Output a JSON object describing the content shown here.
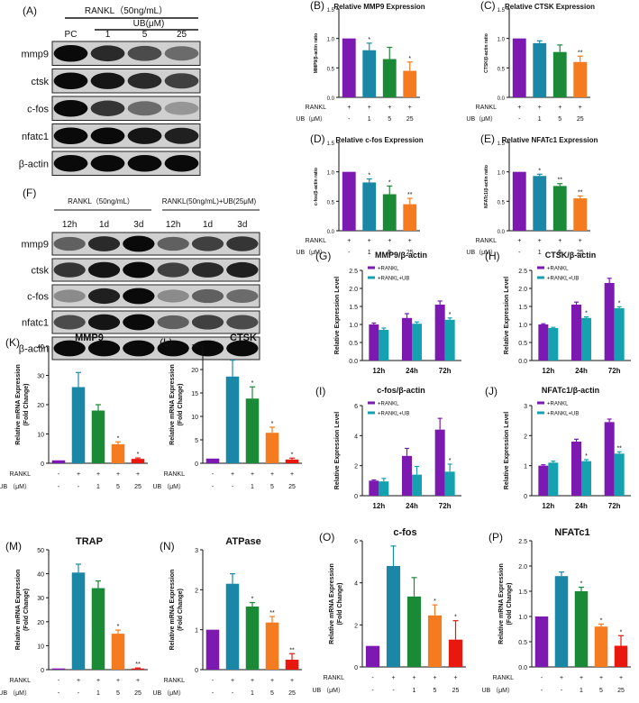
{
  "colors": {
    "purple": "#7b19b0",
    "blue": "#1a87a6",
    "green": "#1a8a37",
    "orange": "#f47b20",
    "red": "#e8180f",
    "teal": "#14a1b0"
  },
  "blot_a": {
    "letter": "(A)",
    "rankl_label": "RANKL（50ng/mL）",
    "ub_label": "UB(μM)",
    "lanes": [
      "PC",
      "1",
      "5",
      "25"
    ],
    "proteins": [
      "mmp9",
      "ctsk",
      "c-fos",
      "nfatc1",
      "β-actin"
    ],
    "intensities": [
      [
        1.0,
        0.85,
        0.7,
        0.55
      ],
      [
        1.0,
        0.95,
        0.85,
        0.75
      ],
      [
        1.0,
        0.8,
        0.55,
        0.35
      ],
      [
        1.0,
        1.0,
        0.95,
        0.9
      ],
      [
        1.0,
        1.0,
        1.0,
        1.0
      ]
    ]
  },
  "blot_f": {
    "letter": "(F)",
    "group1": "RANKL（50ng/mL）",
    "group2": "RANKL(50ng/mL)+UB(25μM)",
    "lanes": [
      "12h",
      "1d",
      "3d",
      "12h",
      "1d",
      "3d"
    ],
    "proteins": [
      "mmp9",
      "ctsk",
      "c-fos",
      "nfatc1",
      "β-actin"
    ],
    "intensities": [
      [
        0.6,
        0.85,
        1.0,
        0.6,
        0.75,
        0.8
      ],
      [
        0.8,
        0.95,
        1.0,
        0.75,
        0.85,
        0.9
      ],
      [
        0.4,
        0.9,
        1.0,
        0.4,
        0.6,
        0.55
      ],
      [
        0.7,
        0.95,
        1.0,
        0.6,
        0.75,
        0.7
      ],
      [
        1.0,
        1.0,
        1.0,
        1.0,
        1.0,
        1.0
      ]
    ]
  },
  "chart_data": [
    {
      "id": "B",
      "letter": "(B)",
      "type": "bar",
      "title": "Relative MMP9 Expression",
      "ylabel": "MMP9/β-actin ratio",
      "ylim": [
        0,
        1.5
      ],
      "yticks": [
        0.0,
        0.5,
        1.0,
        1.5
      ],
      "tick_labels": [
        "0.0",
        "0.5",
        "1.0",
        "1.5"
      ],
      "values": [
        1.0,
        0.8,
        0.65,
        0.45
      ],
      "errors": [
        0,
        0.12,
        0.2,
        0.15
      ],
      "sig": [
        "",
        "*",
        "",
        "*"
      ],
      "colors": [
        "purple",
        "blue",
        "green",
        "orange"
      ],
      "table": {
        "rows": [
          {
            "label": "RANKL",
            "cells": [
              "+",
              "+",
              "+",
              "+"
            ]
          },
          {
            "label": "UB（μM）",
            "cells": [
              "-",
              "1",
              "5",
              "25"
            ]
          }
        ]
      }
    },
    {
      "id": "C",
      "letter": "(C)",
      "type": "bar",
      "title": "Relative CTSK  Expression",
      "ylabel": "CTSK/β-actin ratio",
      "ylim": [
        0,
        1.5
      ],
      "yticks": [
        0.0,
        0.5,
        1.0,
        1.5
      ],
      "tick_labels": [
        "0.0",
        "0.5",
        "1.0",
        "1.5"
      ],
      "values": [
        1.0,
        0.92,
        0.77,
        0.6
      ],
      "errors": [
        0,
        0.04,
        0.12,
        0.1
      ],
      "sig": [
        "",
        "",
        "",
        "**"
      ],
      "colors": [
        "purple",
        "blue",
        "green",
        "orange"
      ],
      "table": {
        "rows": [
          {
            "label": "RANKL",
            "cells": [
              "+",
              "+",
              "+",
              "+"
            ]
          },
          {
            "label": "UB（μM）",
            "cells": [
              "-",
              "1",
              "5",
              "25"
            ]
          }
        ]
      }
    },
    {
      "id": "D",
      "letter": "(D)",
      "type": "bar",
      "title": "Relative c-fos Expression",
      "ylabel": "c-fos/β-actin ratio",
      "ylim": [
        0,
        1.5
      ],
      "yticks": [
        0.0,
        0.5,
        1.0,
        1.5
      ],
      "tick_labels": [
        "0.0",
        "0.5",
        "1.0",
        "1.5"
      ],
      "values": [
        1.0,
        0.82,
        0.62,
        0.45
      ],
      "errors": [
        0,
        0.06,
        0.14,
        0.1
      ],
      "sig": [
        "",
        "*",
        "*",
        "**"
      ],
      "colors": [
        "purple",
        "blue",
        "green",
        "orange"
      ],
      "table": {
        "rows": [
          {
            "label": "RANKL",
            "cells": [
              "+",
              "+",
              "+",
              "+"
            ]
          },
          {
            "label": "UB（μM）",
            "cells": [
              "-",
              "1",
              "5",
              "25"
            ]
          }
        ]
      }
    },
    {
      "id": "E",
      "letter": "(E)",
      "type": "bar",
      "title": "Relative NFATc1 Expression",
      "ylabel": "NFATc1/β-actin ratio",
      "ylim": [
        0,
        1.5
      ],
      "yticks": [
        0.0,
        0.5,
        1.0,
        1.5
      ],
      "tick_labels": [
        "0.0",
        "0.5",
        "1.0",
        "1.5"
      ],
      "values": [
        1.0,
        0.93,
        0.76,
        0.55
      ],
      "errors": [
        0,
        0.03,
        0.04,
        0.04
      ],
      "sig": [
        "",
        "*",
        "**",
        "**"
      ],
      "colors": [
        "purple",
        "blue",
        "green",
        "orange"
      ],
      "table": {
        "rows": [
          {
            "label": "RANKL",
            "cells": [
              "+",
              "+",
              "+",
              "+"
            ]
          },
          {
            "label": "UB（μM）",
            "cells": [
              "-",
              "1",
              "5",
              "25"
            ]
          }
        ]
      }
    },
    {
      "id": "G",
      "letter": "(G)",
      "type": "grouped_bar",
      "title": "MMP9/β-actin",
      "ylabel": "Relative Expression Level",
      "ylim": [
        0,
        2.5
      ],
      "yticks": [
        0.0,
        0.5,
        1.0,
        1.5,
        2.0,
        2.5
      ],
      "tick_labels": [
        "0.0",
        "0.5",
        "1.0",
        "1.5",
        "2.0",
        "2.5"
      ],
      "categories": [
        "12h",
        "24h",
        "72h"
      ],
      "series": [
        {
          "name": "+RANKL",
          "color": "purple",
          "values": [
            1.0,
            1.18,
            1.55
          ],
          "errors": [
            0.04,
            0.12,
            0.1
          ]
        },
        {
          "name": "+RANKL+UB",
          "color": "teal",
          "values": [
            0.85,
            1.02,
            1.13
          ],
          "errors": [
            0.05,
            0.05,
            0.05
          ]
        }
      ],
      "sig": [
        [
          "",
          ""
        ],
        [
          "",
          ""
        ],
        [
          "",
          "*"
        ]
      ]
    },
    {
      "id": "H",
      "letter": "(H)",
      "type": "grouped_bar",
      "title": "CTSK/β-actin",
      "ylabel": "Relative Expression Level",
      "ylim": [
        0,
        2.5
      ],
      "yticks": [
        0.0,
        0.5,
        1.0,
        1.5,
        2.0,
        2.5
      ],
      "tick_labels": [
        "0.0",
        "0.5",
        "1.0",
        "1.5",
        "2.0",
        "2.5"
      ],
      "categories": [
        "12h",
        "24h",
        "72h"
      ],
      "series": [
        {
          "name": "+RANKL",
          "color": "purple",
          "values": [
            1.0,
            1.55,
            2.15
          ],
          "errors": [
            0.02,
            0.07,
            0.13
          ]
        },
        {
          "name": "+RANKL+UB",
          "color": "teal",
          "values": [
            0.9,
            1.18,
            1.45
          ],
          "errors": [
            0.02,
            0.03,
            0.04
          ]
        }
      ],
      "sig": [
        [
          "",
          ""
        ],
        [
          "",
          "*"
        ],
        [
          "",
          "*"
        ]
      ]
    },
    {
      "id": "I",
      "letter": "(I)",
      "type": "grouped_bar",
      "title": "c-fos/β-actin",
      "ylabel": "Relative Expression Level",
      "ylim": [
        0,
        6
      ],
      "yticks": [
        0,
        2,
        4,
        6
      ],
      "tick_labels": [
        "0",
        "2",
        "4",
        "6"
      ],
      "categories": [
        "12h",
        "24h",
        "72h"
      ],
      "series": [
        {
          "name": "+RANKL",
          "color": "purple",
          "values": [
            1.0,
            2.65,
            4.4
          ],
          "errors": [
            0.05,
            0.5,
            0.75
          ]
        },
        {
          "name": "+RANKL+UB",
          "color": "teal",
          "values": [
            0.95,
            1.4,
            1.6
          ],
          "errors": [
            0.2,
            0.55,
            0.5
          ]
        }
      ],
      "sig": [
        [
          "",
          ""
        ],
        [
          "",
          ""
        ],
        [
          "",
          "*"
        ]
      ]
    },
    {
      "id": "J",
      "letter": "(J)",
      "type": "grouped_bar",
      "title": "NFATc1/β-actin",
      "ylabel": "Relative Expression Level",
      "ylim": [
        0,
        3
      ],
      "yticks": [
        0,
        1,
        2,
        3
      ],
      "tick_labels": [
        "0",
        "1",
        "2",
        "3"
      ],
      "categories": [
        "12h",
        "24h",
        "72h"
      ],
      "series": [
        {
          "name": "+RANKL",
          "color": "purple",
          "values": [
            1.0,
            1.8,
            2.45
          ],
          "errors": [
            0.03,
            0.08,
            0.1
          ]
        },
        {
          "name": "+RANKL+UB",
          "color": "teal",
          "values": [
            1.1,
            1.15,
            1.4
          ],
          "errors": [
            0.05,
            0.05,
            0.06
          ]
        }
      ],
      "sig": [
        [
          "",
          ""
        ],
        [
          "",
          "*"
        ],
        [
          "",
          "**"
        ]
      ]
    },
    {
      "id": "K",
      "letter": "(K)",
      "type": "bar",
      "title": "MMP9",
      "ylabel": "Relative mRNA Expression\n(Fold Change)",
      "ylim": [
        0,
        40
      ],
      "yticks": [
        0,
        10,
        20,
        30,
        40
      ],
      "tick_labels": [
        "0",
        "10",
        "20",
        "30",
        "40"
      ],
      "values": [
        1.0,
        26.0,
        18.0,
        6.5,
        1.5
      ],
      "errors": [
        0,
        5.0,
        2.0,
        0.8,
        0.3
      ],
      "sig": [
        "",
        "",
        "",
        "*",
        "*"
      ],
      "colors": [
        "purple",
        "blue",
        "green",
        "orange",
        "red"
      ],
      "table": {
        "rows": [
          {
            "label": "RANKL",
            "cells": [
              "-",
              "+",
              "+",
              "+",
              "+"
            ]
          },
          {
            "label": "UB （μM）",
            "cells": [
              "-",
              "-",
              "1",
              "5",
              "25"
            ]
          }
        ]
      }
    },
    {
      "id": "L",
      "letter": "(L)",
      "type": "bar",
      "title": "CTSK",
      "ylabel": "Relative mRNA Expression\n(Fold Change)",
      "ylim": [
        0,
        25
      ],
      "yticks": [
        0,
        5,
        10,
        15,
        20,
        25
      ],
      "tick_labels": [
        "0",
        "5",
        "10",
        "15",
        "20",
        "25"
      ],
      "values": [
        1.0,
        18.5,
        13.8,
        6.5,
        0.8
      ],
      "errors": [
        0,
        3.5,
        2.5,
        1.2,
        0.3
      ],
      "sig": [
        "",
        "",
        "*",
        "*",
        "*"
      ],
      "colors": [
        "purple",
        "blue",
        "green",
        "orange",
        "red"
      ],
      "table": {
        "rows": [
          {
            "label": "RANKL",
            "cells": [
              "-",
              "+",
              "+",
              "+",
              "+"
            ]
          },
          {
            "label": "UB （μM）",
            "cells": [
              "-",
              "-",
              "1",
              "5",
              "25"
            ]
          }
        ]
      }
    },
    {
      "id": "M",
      "letter": "(M)",
      "type": "bar",
      "title": "TRAP",
      "ylabel": "Relative mRNA Expression\n(Fold Change)",
      "ylim": [
        0,
        50
      ],
      "yticks": [
        0,
        10,
        20,
        30,
        40,
        50
      ],
      "tick_labels": [
        "0",
        "10",
        "20",
        "30",
        "40",
        "50"
      ],
      "values": [
        0.5,
        40.5,
        34.0,
        15.0,
        0.5
      ],
      "errors": [
        0,
        3.5,
        3.0,
        1.5,
        0.2
      ],
      "sig": [
        "",
        "",
        "",
        "*",
        "**"
      ],
      "colors": [
        "purple",
        "blue",
        "green",
        "orange",
        "red"
      ],
      "table": {
        "rows": [
          {
            "label": "RANKL",
            "cells": [
              "-",
              "+",
              "+",
              "+",
              "+"
            ]
          },
          {
            "label": "UB （μM）",
            "cells": [
              "-",
              "-",
              "1",
              "5",
              "25"
            ]
          }
        ]
      }
    },
    {
      "id": "N",
      "letter": "(N)",
      "type": "bar",
      "title": "ATPase",
      "ylabel": "Relative mRNA Expression\n(Fold Change)",
      "ylim": [
        0,
        3
      ],
      "yticks": [
        0,
        1,
        2,
        3
      ],
      "tick_labels": [
        "0",
        "1",
        "2",
        "3"
      ],
      "values": [
        1.0,
        2.15,
        1.58,
        1.18,
        0.25
      ],
      "errors": [
        0,
        0.25,
        0.1,
        0.15,
        0.15
      ],
      "sig": [
        "",
        "",
        "*",
        "**",
        "**"
      ],
      "colors": [
        "purple",
        "blue",
        "green",
        "orange",
        "red"
      ],
      "table": {
        "rows": [
          {
            "label": "RANKL",
            "cells": [
              "-",
              "+",
              "+",
              "+",
              "+"
            ]
          },
          {
            "label": "UB （μM）",
            "cells": [
              "-",
              "-",
              "1",
              "5",
              "25"
            ]
          }
        ]
      }
    },
    {
      "id": "O",
      "letter": "(O)",
      "type": "bar",
      "title": "c-fos",
      "ylabel": "Relative mRNA Expression\n(Fold Change)",
      "ylim": [
        0,
        6
      ],
      "yticks": [
        0,
        2,
        4,
        6
      ],
      "tick_labels": [
        "0",
        "2",
        "4",
        "6"
      ],
      "values": [
        1.0,
        4.8,
        3.35,
        2.45,
        1.3
      ],
      "errors": [
        0,
        0.95,
        0.9,
        0.5,
        0.9
      ],
      "sig": [
        "",
        "",
        "",
        "*",
        "*"
      ],
      "colors": [
        "purple",
        "blue",
        "green",
        "orange",
        "red"
      ],
      "table": {
        "rows": [
          {
            "label": "RANKL",
            "cells": [
              "-",
              "+",
              "+",
              "+",
              "+"
            ]
          },
          {
            "label": "UB （μM）",
            "cells": [
              "-",
              "-",
              "1",
              "5",
              "25"
            ]
          }
        ]
      }
    },
    {
      "id": "P",
      "letter": "(P)",
      "type": "bar",
      "title": "NFATc1",
      "ylabel": "Relative mRNA Expression\n(Fold Change)",
      "ylim": [
        0,
        2.5
      ],
      "yticks": [
        0.0,
        0.5,
        1.0,
        1.5,
        2.0,
        2.5
      ],
      "tick_labels": [
        "0.0",
        "0.5",
        "1.0",
        "1.5",
        "2.0",
        "2.5"
      ],
      "values": [
        1.0,
        1.8,
        1.5,
        0.8,
        0.42
      ],
      "errors": [
        0,
        0.08,
        0.08,
        0.05,
        0.2
      ],
      "sig": [
        "",
        "",
        "*",
        "*",
        "*"
      ],
      "colors": [
        "purple",
        "blue",
        "green",
        "orange",
        "red"
      ],
      "table": {
        "rows": [
          {
            "label": "RANKL",
            "cells": [
              "-",
              "+",
              "+",
              "+",
              "+"
            ]
          },
          {
            "label": "UB （μM）",
            "cells": [
              "-",
              "-",
              "1",
              "5",
              "25"
            ]
          }
        ]
      }
    }
  ]
}
